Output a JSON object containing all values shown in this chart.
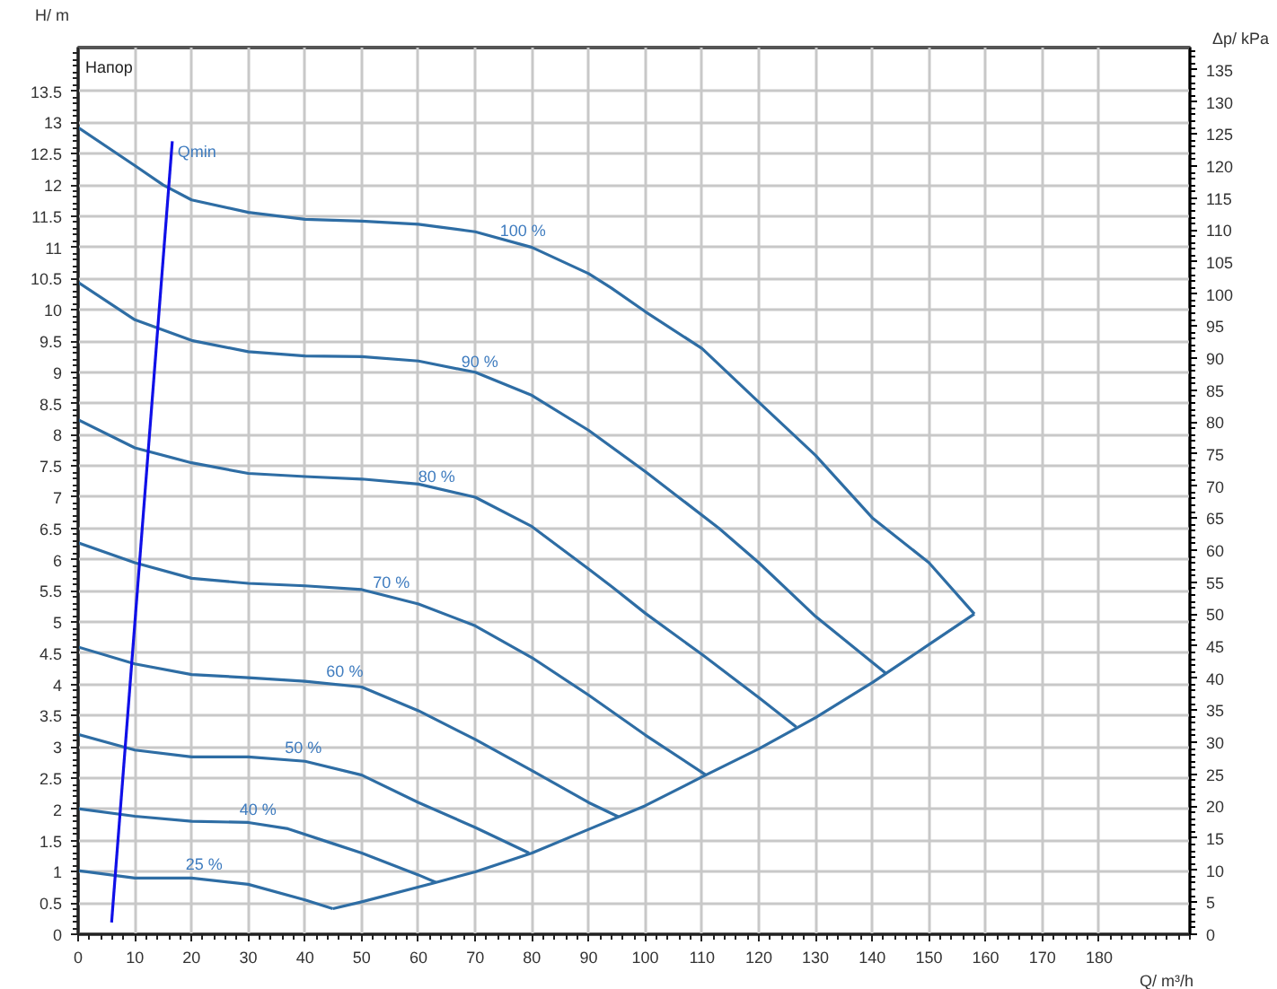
{
  "chart_data": {
    "type": "line",
    "xlabel": "Q/ m³/h",
    "ylabel": "H/ m",
    "y2label": "Δp/ kPa",
    "xlim": [
      0,
      196
    ],
    "xticks": [
      0,
      10,
      20,
      30,
      40,
      50,
      60,
      70,
      80,
      90,
      100,
      110,
      120,
      130,
      140,
      150,
      160,
      170,
      180
    ],
    "ylim": [
      0,
      14.2
    ],
    "yticks": [
      0,
      0.5,
      1,
      1.5,
      2,
      2.5,
      3,
      3.5,
      4,
      4.5,
      5,
      5.5,
      6,
      6.5,
      7,
      7.5,
      8,
      8.5,
      9,
      9.5,
      10,
      10.5,
      11,
      11.5,
      12,
      12.5,
      13,
      13.5
    ],
    "y2lim": [
      0,
      138.5
    ],
    "y2ticks": [
      0,
      5,
      10,
      15,
      20,
      25,
      30,
      35,
      40,
      45,
      50,
      55,
      60,
      65,
      70,
      75,
      80,
      85,
      90,
      95,
      100,
      105,
      110,
      115,
      120,
      125,
      130,
      135
    ],
    "grid": true,
    "marker": "none",
    "line_style": "solid",
    "series": [
      {
        "color": "#2e6da4",
        "x": [
          0,
          10,
          15,
          20,
          30,
          40,
          50,
          60,
          70,
          80,
          90,
          94,
          100,
          110,
          120,
          130,
          140,
          150,
          158
        ],
        "values": [
          12.92,
          12.31,
          12.0,
          11.76,
          11.56,
          11.45,
          11.42,
          11.37,
          11.25,
          11.0,
          10.58,
          10.35,
          9.97,
          9.38,
          8.52,
          7.67,
          6.67,
          5.95,
          5.13
        ]
      },
      {
        "color": "#2e6da4",
        "x": [
          0,
          10,
          20,
          30,
          40,
          50,
          60,
          70,
          80,
          90,
          100,
          113,
          120,
          130,
          142.4
        ],
        "values": [
          10.44,
          9.84,
          9.51,
          9.33,
          9.26,
          9.25,
          9.18,
          9.0,
          8.63,
          8.07,
          7.41,
          6.5,
          5.95,
          5.09,
          4.18
        ]
      },
      {
        "color": "#2e6da4",
        "x": [
          0,
          10,
          20,
          30,
          40,
          50,
          60,
          70,
          80,
          90,
          94.3,
          100,
          110,
          120,
          126.6
        ],
        "values": [
          8.24,
          7.79,
          7.55,
          7.38,
          7.33,
          7.29,
          7.21,
          7.0,
          6.53,
          5.85,
          5.55,
          5.14,
          4.48,
          3.79,
          3.32
        ]
      },
      {
        "color": "#2e6da4",
        "x": [
          0,
          10,
          20,
          30,
          40,
          50,
          60,
          70,
          80,
          90,
          100,
          110.7
        ],
        "values": [
          6.27,
          5.95,
          5.7,
          5.62,
          5.58,
          5.52,
          5.29,
          4.94,
          4.43,
          3.83,
          3.19,
          2.55
        ]
      },
      {
        "color": "#2e6da4",
        "x": [
          0,
          10,
          20,
          30,
          40,
          50,
          60,
          70,
          80,
          90,
          95.3
        ],
        "values": [
          4.6,
          4.33,
          4.16,
          4.11,
          4.05,
          3.96,
          3.58,
          3.12,
          2.62,
          2.11,
          1.88
        ]
      },
      {
        "color": "#2e6da4",
        "x": [
          0,
          10,
          20,
          30,
          40,
          50,
          60,
          70,
          79.5
        ],
        "values": [
          3.2,
          2.95,
          2.84,
          2.84,
          2.77,
          2.55,
          2.11,
          1.71,
          1.3
        ]
      },
      {
        "color": "#2e6da4",
        "x": [
          0,
          10,
          20,
          30,
          37,
          45,
          50,
          60,
          63.1
        ],
        "values": [
          2.01,
          1.89,
          1.81,
          1.79,
          1.69,
          1.45,
          1.3,
          0.95,
          0.83
        ]
      },
      {
        "color": "#2e6da4",
        "x": [
          0,
          10,
          20,
          30,
          40,
          44.9
        ],
        "values": [
          1.02,
          0.9,
          0.9,
          0.8,
          0.55,
          0.41
        ]
      },
      {
        "color": "#2e6da4",
        "x": [
          44.9,
          50,
          63.1,
          70,
          80,
          90,
          100,
          110,
          120,
          130,
          140,
          150,
          158
        ],
        "values": [
          0.41,
          0.52,
          0.83,
          1.0,
          1.3,
          1.68,
          2.06,
          2.52,
          2.97,
          3.47,
          4.03,
          4.64,
          5.13
        ]
      },
      {
        "name": "Qmin",
        "color": "#1010e8",
        "x": [
          5.9,
          16.6
        ],
        "values": [
          0.19,
          12.7
        ]
      }
    ],
    "annotations": [
      "Напор",
      {
        "text": "100 %",
        "x": 78.4,
        "y": 11.18
      },
      {
        "text": "90 %",
        "x": 70.8,
        "y": 9.09
      },
      {
        "text": "80 %",
        "x": 63.2,
        "y": 7.24
      },
      {
        "text": "70 %",
        "x": 55.2,
        "y": 5.55
      },
      {
        "text": "60 %",
        "x": 47,
        "y": 4.12
      },
      {
        "text": "50 %",
        "x": 39.7,
        "y": 2.91
      },
      {
        "text": "40 %",
        "x": 31.7,
        "y": 1.91
      },
      {
        "text": "25 %",
        "x": 22.2,
        "y": 1.03
      }
    ]
  }
}
